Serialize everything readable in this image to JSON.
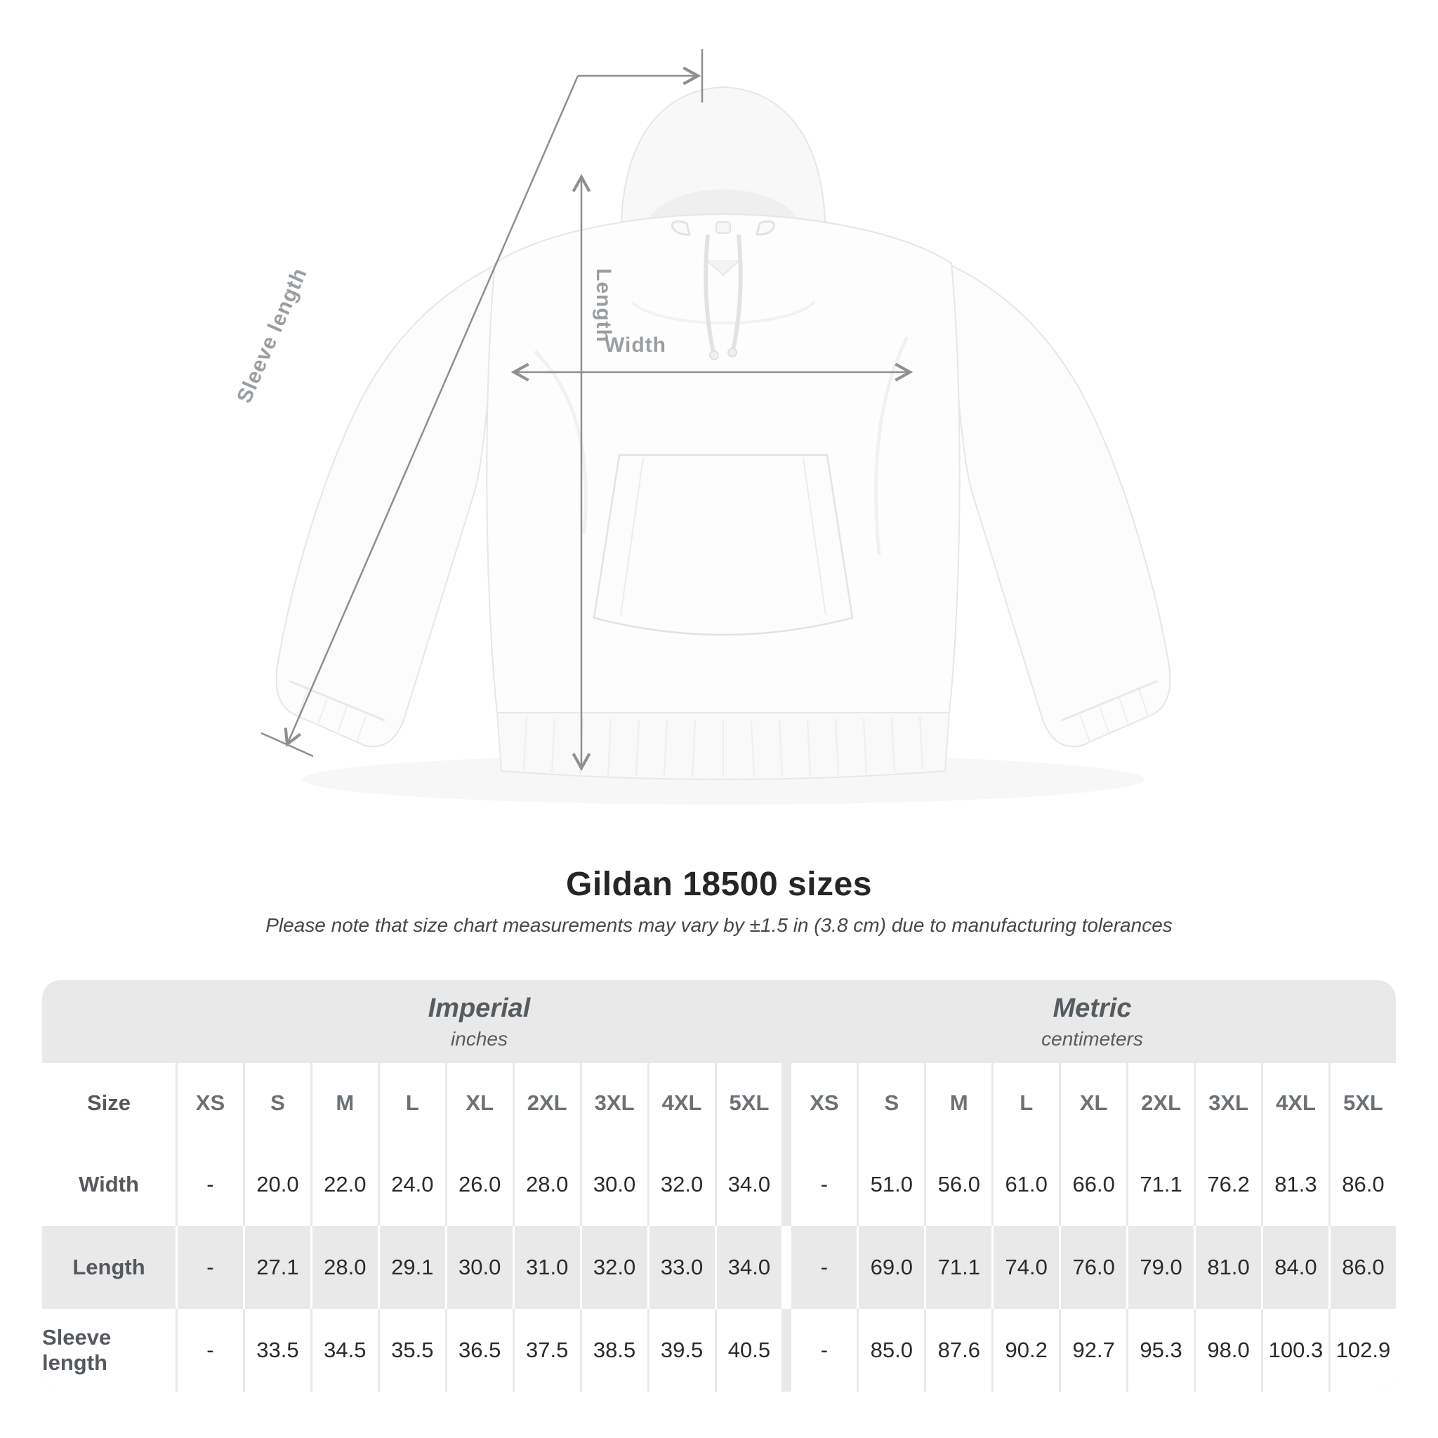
{
  "diagram": {
    "labels": {
      "length": "Length",
      "width": "Width",
      "sleeve": "Sleeve length"
    }
  },
  "title": "Gildan 18500 sizes",
  "note": "Please note that size chart measurements may vary by ±1.5 in (3.8 cm) due to manufacturing tolerances",
  "table": {
    "unit_groups": [
      {
        "label": "Imperial",
        "sublabel": "inches"
      },
      {
        "label": "Metric",
        "sublabel": "centimeters"
      }
    ],
    "size_col_header": "Size",
    "sizes": [
      "XS",
      "S",
      "M",
      "L",
      "XL",
      "2XL",
      "3XL",
      "4XL",
      "5XL"
    ],
    "rows": [
      {
        "label": "Width",
        "imperial": [
          "-",
          "20.0",
          "22.0",
          "24.0",
          "26.0",
          "28.0",
          "30.0",
          "32.0",
          "34.0"
        ],
        "metric": [
          "-",
          "51.0",
          "56.0",
          "61.0",
          "66.0",
          "71.1",
          "76.2",
          "81.3",
          "86.0"
        ]
      },
      {
        "label": "Length",
        "imperial": [
          "-",
          "27.1",
          "28.0",
          "29.1",
          "30.0",
          "31.0",
          "32.0",
          "33.0",
          "34.0"
        ],
        "metric": [
          "-",
          "69.0",
          "71.1",
          "74.0",
          "76.0",
          "79.0",
          "81.0",
          "84.0",
          "86.0"
        ]
      },
      {
        "label": "Sleeve length",
        "imperial": [
          "-",
          "33.5",
          "34.5",
          "35.5",
          "36.5",
          "37.5",
          "38.5",
          "39.5",
          "40.5"
        ],
        "metric": [
          "-",
          "85.0",
          "87.6",
          "90.2",
          "92.7",
          "95.3",
          "98.0",
          "100.3",
          "102.9"
        ]
      }
    ]
  },
  "colors": {
    "stripe": "#e9e9e9",
    "title-text": "#262626",
    "note-text": "#474747",
    "band-text": "#565b5f",
    "size-text": "#6c7175",
    "label-text": "#55595d",
    "value-text": "#2b2b2b",
    "diagram-line": "#8d8f90",
    "diagram-text": "#9b9ea1"
  }
}
